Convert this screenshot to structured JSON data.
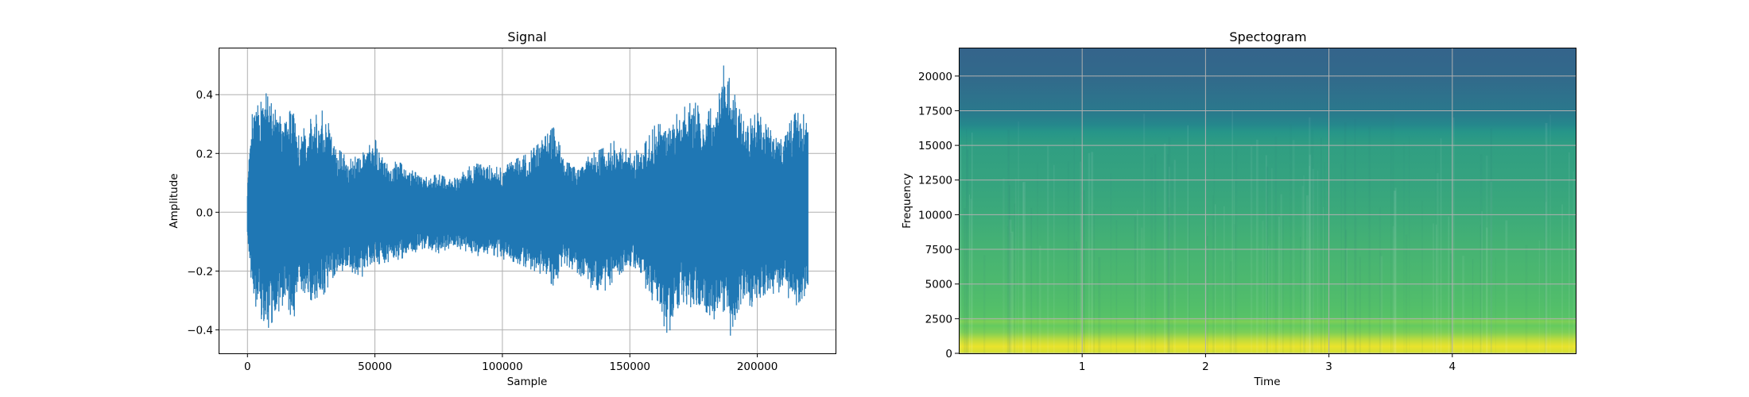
{
  "chart_data": [
    {
      "type": "line",
      "title": "Signal",
      "xlabel": "Sample",
      "ylabel": "Amplitude",
      "xlim": [
        -11000,
        231000
      ],
      "ylim": [
        -0.48,
        0.56
      ],
      "grid": true,
      "color": "#1f77b4",
      "x_ticks": [
        0,
        50000,
        100000,
        150000,
        200000
      ],
      "x_tick_labels": [
        "0",
        "50000",
        "100000",
        "150000",
        "200000"
      ],
      "y_ticks": [
        -0.4,
        -0.2,
        0.0,
        0.2,
        0.4
      ],
      "y_tick_labels": [
        "−0.4",
        "−0.2",
        "0.0",
        "0.2",
        "0.4"
      ],
      "envelope": {
        "x": [
          0,
          2000,
          5000,
          7000,
          10000,
          15000,
          18000,
          20000,
          25000,
          30000,
          35000,
          40000,
          45000,
          50000,
          55000,
          60000,
          65000,
          70000,
          75000,
          80000,
          85000,
          90000,
          95000,
          100000,
          105000,
          110000,
          115000,
          120000,
          125000,
          130000,
          135000,
          140000,
          145000,
          150000,
          155000,
          160000,
          165000,
          170000,
          175000,
          180000,
          185000,
          187000,
          190000,
          195000,
          200000,
          205000,
          210000,
          215000,
          220000
        ],
        "max": [
          0.1,
          0.35,
          0.37,
          0.41,
          0.36,
          0.3,
          0.38,
          0.26,
          0.32,
          0.35,
          0.22,
          0.18,
          0.2,
          0.25,
          0.16,
          0.18,
          0.14,
          0.12,
          0.13,
          0.11,
          0.14,
          0.18,
          0.16,
          0.15,
          0.18,
          0.2,
          0.24,
          0.29,
          0.17,
          0.16,
          0.2,
          0.22,
          0.25,
          0.2,
          0.22,
          0.3,
          0.3,
          0.35,
          0.38,
          0.33,
          0.4,
          0.51,
          0.43,
          0.3,
          0.34,
          0.28,
          0.26,
          0.34,
          0.33
        ],
        "min": [
          -0.1,
          -0.3,
          -0.35,
          -0.41,
          -0.37,
          -0.3,
          -0.38,
          -0.25,
          -0.3,
          -0.28,
          -0.2,
          -0.2,
          -0.22,
          -0.18,
          -0.17,
          -0.16,
          -0.14,
          -0.12,
          -0.14,
          -0.12,
          -0.14,
          -0.15,
          -0.14,
          -0.16,
          -0.17,
          -0.19,
          -0.21,
          -0.25,
          -0.18,
          -0.21,
          -0.26,
          -0.27,
          -0.22,
          -0.18,
          -0.24,
          -0.32,
          -0.42,
          -0.3,
          -0.33,
          -0.34,
          -0.38,
          -0.33,
          -0.44,
          -0.31,
          -0.33,
          -0.28,
          -0.27,
          -0.32,
          -0.27
        ]
      }
    },
    {
      "type": "heatmap",
      "title": "Spectogram",
      "xlabel": "Time",
      "ylabel": "Frequency",
      "xlim": [
        0,
        5
      ],
      "ylim": [
        0,
        22050
      ],
      "grid": true,
      "x_ticks": [
        1,
        2,
        3,
        4
      ],
      "x_tick_labels": [
        "1",
        "2",
        "3",
        "4"
      ],
      "y_ticks": [
        0,
        2500,
        5000,
        7500,
        10000,
        12500,
        15000,
        17500,
        20000
      ],
      "y_tick_labels": [
        "0",
        "2500",
        "5000",
        "7500",
        "10000",
        "12500",
        "15000",
        "17500",
        "20000"
      ],
      "colormap": "viridis",
      "intensity_profile": {
        "freq": [
          0,
          500,
          1000,
          1500,
          2000,
          2300,
          2600,
          3500,
          5000,
          7500,
          10000,
          12500,
          15000,
          16000,
          16500,
          17500,
          20000,
          22050
        ],
        "level": [
          0.93,
          0.97,
          0.9,
          0.8,
          0.76,
          0.8,
          0.72,
          0.7,
          0.68,
          0.65,
          0.61,
          0.58,
          0.56,
          0.52,
          0.46,
          0.4,
          0.34,
          0.32
        ]
      }
    }
  ]
}
